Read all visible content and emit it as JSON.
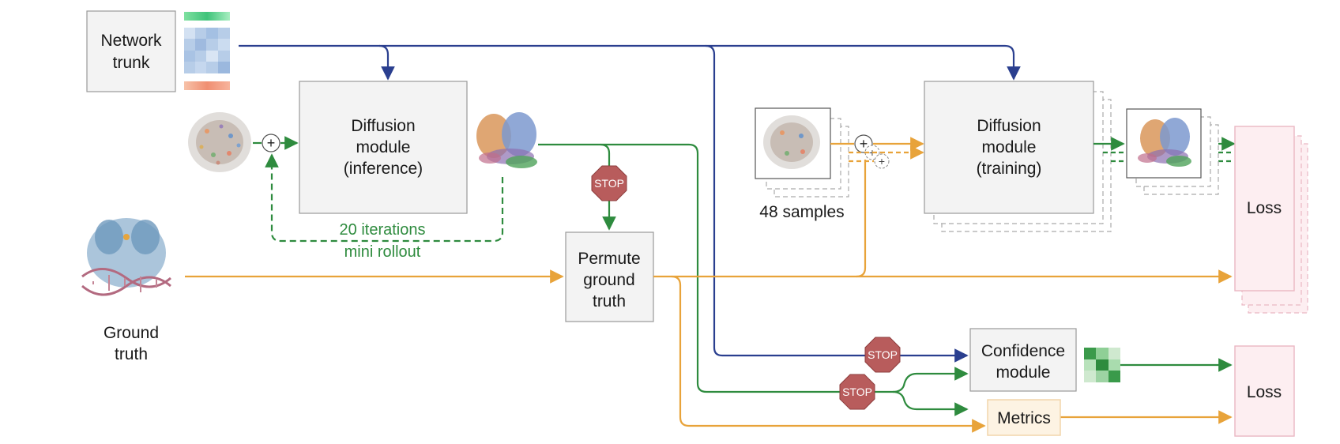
{
  "colors": {
    "navy": "#2a3f8f",
    "green": "#2e8b3e",
    "orange": "#e8a33a",
    "stop": "#b85c5c",
    "box_fill": "#f3f3f3",
    "box_stroke": "#999999",
    "loss_fill": "#fdeef1",
    "loss_stroke": "#eab7c3",
    "metrics_fill": "#fdf3e3",
    "metrics_stroke": "#f1d3a6"
  },
  "nodes": {
    "network_trunk": {
      "line1": "Network",
      "line2": "trunk"
    },
    "diffusion_inference": {
      "line1": "Diffusion",
      "line2": "module",
      "line3": "(inference)"
    },
    "diffusion_training": {
      "line1": "Diffusion",
      "line2": "module",
      "line3": "(training)"
    },
    "permute_gt": {
      "line1": "Permute",
      "line2": "ground",
      "line3": "truth"
    },
    "confidence": {
      "line1": "Confidence",
      "line2": "module"
    },
    "metrics": {
      "label": "Metrics"
    },
    "loss_top": {
      "label": "Loss"
    },
    "loss_bottom": {
      "label": "Loss"
    },
    "ground_truth": {
      "line1": "Ground",
      "line2": "truth"
    },
    "samples": {
      "label": "48 samples"
    },
    "rollout": {
      "line1": "20 iterations",
      "line2": "mini rollout"
    },
    "stop_label": "STOP",
    "plus": "+"
  }
}
